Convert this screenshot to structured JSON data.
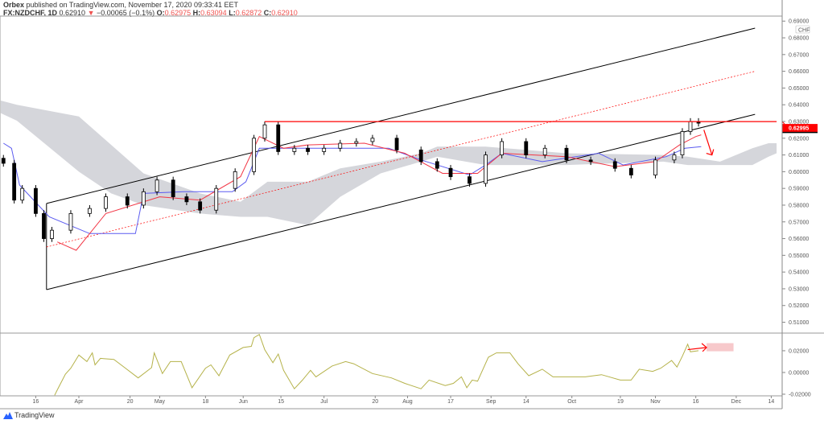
{
  "header": {
    "publisher": "Orbex",
    "published_text": "published on TradingView.com, November 17, 2020 09:33:41 EET",
    "symbol": "FX:NZDCHF, 1D",
    "last": "0.62910",
    "change": "−0.00065 (−0.1%)",
    "o_label": "O:",
    "o": "0.62975",
    "h_label": "H:",
    "h": "0.63094",
    "l_label": "L:",
    "l": "0.62872",
    "c_label": "C:",
    "c": "0.62910"
  },
  "branding": {
    "logo_text": "TradingView"
  },
  "colors": {
    "up": "#ffffff",
    "down": "#000000",
    "tenkan": "#f23645",
    "kijun": "#5b5bf0",
    "cloud": "#d5d6db",
    "oscillator": "#b5b24a",
    "drawing_red": "#ff0000",
    "channel": "#000000"
  },
  "chart_data": [
    {
      "type": "candlestick",
      "pane": "main",
      "currency_label": "CHF",
      "ylim": [
        0.504,
        0.693
      ],
      "xlim": [
        "2020-03-03",
        "2020-12-16"
      ],
      "y_ticks": [
        "0.69000",
        "0.68000",
        "0.67000",
        "0.66000",
        "0.65000",
        "0.64000",
        "0.63000",
        "0.62000",
        "0.61000",
        "0.60000",
        "0.59000",
        "0.58000",
        "0.57000",
        "0.56000",
        "0.55000",
        "0.54000",
        "0.53000",
        "0.52000",
        "0.51000"
      ],
      "price_label": "0.62995",
      "closes": [
        [
          "2020-03-04",
          0.605
        ],
        [
          "2020-03-08",
          0.583
        ],
        [
          "2020-03-11",
          0.59
        ],
        [
          "2020-03-16",
          0.575
        ],
        [
          "2020-03-19",
          0.56
        ],
        [
          "2020-03-22",
          0.565
        ],
        [
          "2020-03-29",
          0.575
        ],
        [
          "2020-04-05",
          0.578
        ],
        [
          "2020-04-11",
          0.585
        ],
        [
          "2020-04-19",
          0.58
        ],
        [
          "2020-04-25",
          0.588
        ],
        [
          "2020-04-30",
          0.595
        ],
        [
          "2020-05-06",
          0.585
        ],
        [
          "2020-05-11",
          0.582
        ],
        [
          "2020-05-16",
          0.577
        ],
        [
          "2020-05-22",
          0.59
        ],
        [
          "2020-05-29",
          0.6
        ],
        [
          "2020-06-05",
          0.62
        ],
        [
          "2020-06-09",
          0.628
        ],
        [
          "2020-06-14",
          0.612
        ],
        [
          "2020-06-20",
          0.614
        ],
        [
          "2020-06-25",
          0.612
        ],
        [
          "2020-07-01",
          0.614
        ],
        [
          "2020-07-07",
          0.617
        ],
        [
          "2020-07-13",
          0.618
        ],
        [
          "2020-07-19",
          0.62
        ],
        [
          "2020-07-28",
          0.613
        ],
        [
          "2020-08-06",
          0.606
        ],
        [
          "2020-08-12",
          0.602
        ],
        [
          "2020-08-17",
          0.597
        ],
        [
          "2020-08-24",
          0.593
        ],
        [
          "2020-08-30",
          0.61
        ],
        [
          "2020-09-05",
          0.618
        ],
        [
          "2020-09-14",
          0.61
        ],
        [
          "2020-09-21",
          0.614
        ],
        [
          "2020-09-29",
          0.607
        ],
        [
          "2020-10-08",
          0.606
        ],
        [
          "2020-10-17",
          0.602
        ],
        [
          "2020-10-23",
          0.598
        ],
        [
          "2020-11-01",
          0.607
        ],
        [
          "2020-11-08",
          0.61
        ],
        [
          "2020-11-11",
          0.624
        ],
        [
          "2020-11-14",
          0.63
        ],
        [
          "2020-11-17",
          0.629
        ]
      ],
      "tenkan": [
        [
          "2020-03-24",
          0.558
        ],
        [
          "2020-03-31",
          0.553
        ],
        [
          "2020-04-11",
          0.575
        ],
        [
          "2020-05-01",
          0.585
        ],
        [
          "2020-05-16",
          0.583
        ],
        [
          "2020-05-31",
          0.597
        ],
        [
          "2020-06-07",
          0.621
        ],
        [
          "2020-06-16",
          0.614
        ],
        [
          "2020-06-25",
          0.616
        ],
        [
          "2020-07-16",
          0.617
        ],
        [
          "2020-07-31",
          0.611
        ],
        [
          "2020-08-14",
          0.599
        ],
        [
          "2020-08-27",
          0.599
        ],
        [
          "2020-09-05",
          0.611
        ],
        [
          "2020-09-29",
          0.609
        ],
        [
          "2020-10-17",
          0.603
        ],
        [
          "2020-11-01",
          0.606
        ],
        [
          "2020-11-10",
          0.616
        ],
        [
          "2020-11-16",
          0.621
        ],
        [
          "2020-11-18",
          0.622
        ]
      ],
      "kijun": [
        [
          "2020-03-04",
          0.617
        ],
        [
          "2020-03-07",
          0.614
        ],
        [
          "2020-03-10",
          0.592
        ],
        [
          "2020-03-21",
          0.573
        ],
        [
          "2020-04-05",
          0.563
        ],
        [
          "2020-04-22",
          0.563
        ],
        [
          "2020-04-25",
          0.587
        ],
        [
          "2020-05-10",
          0.588
        ],
        [
          "2020-05-28",
          0.588
        ],
        [
          "2020-06-02",
          0.594
        ],
        [
          "2020-06-07",
          0.614
        ],
        [
          "2020-06-22",
          0.614
        ],
        [
          "2020-07-25",
          0.614
        ],
        [
          "2020-08-06",
          0.607
        ],
        [
          "2020-08-24",
          0.598
        ],
        [
          "2020-08-30",
          0.604
        ],
        [
          "2020-09-05",
          0.611
        ],
        [
          "2020-09-20",
          0.606
        ],
        [
          "2020-10-11",
          0.611
        ],
        [
          "2020-10-20",
          0.604
        ],
        [
          "2020-11-05",
          0.609
        ],
        [
          "2020-11-12",
          0.614
        ],
        [
          "2020-11-18",
          0.615
        ]
      ],
      "cloud_upper": [
        [
          "2020-03-03",
          0.6425
        ],
        [
          "2020-03-09",
          0.64
        ],
        [
          "2020-04-01",
          0.633
        ],
        [
          "2020-04-13",
          0.616
        ],
        [
          "2020-04-25",
          0.599
        ],
        [
          "2020-05-16",
          0.587
        ],
        [
          "2020-05-31",
          0.582
        ],
        [
          "2020-06-10",
          0.594
        ],
        [
          "2020-06-25",
          0.594
        ],
        [
          "2020-07-07",
          0.602
        ],
        [
          "2020-07-22",
          0.606
        ],
        [
          "2020-08-06",
          0.611
        ],
        [
          "2020-08-12",
          0.615
        ],
        [
          "2020-08-30",
          0.615
        ],
        [
          "2020-09-29",
          0.611
        ],
        [
          "2020-11-04",
          0.61
        ],
        [
          "2020-11-13",
          0.609
        ],
        [
          "2020-11-25",
          0.606
        ],
        [
          "2020-12-07",
          0.614
        ],
        [
          "2020-12-13",
          0.617
        ],
        [
          "2020-12-16",
          0.617
        ]
      ],
      "cloud_lower": [
        [
          "2020-03-03",
          0.635
        ],
        [
          "2020-03-09",
          0.6305
        ],
        [
          "2020-04-01",
          0.6
        ],
        [
          "2020-04-13",
          0.587
        ],
        [
          "2020-04-25",
          0.58
        ],
        [
          "2020-05-16",
          0.575
        ],
        [
          "2020-05-31",
          0.573
        ],
        [
          "2020-06-10",
          0.573
        ],
        [
          "2020-06-25",
          0.568
        ],
        [
          "2020-07-07",
          0.585
        ],
        [
          "2020-07-22",
          0.599
        ],
        [
          "2020-08-06",
          0.606
        ],
        [
          "2020-08-12",
          0.609
        ],
        [
          "2020-08-30",
          0.604
        ],
        [
          "2020-09-29",
          0.604
        ],
        [
          "2020-11-04",
          0.606
        ],
        [
          "2020-11-13",
          0.604
        ],
        [
          "2020-11-25",
          0.604
        ],
        [
          "2020-12-07",
          0.604
        ],
        [
          "2020-12-13",
          0.609
        ],
        [
          "2020-12-16",
          0.611
        ]
      ],
      "drawings": {
        "channel_upper": [
          [
            "2020-03-20",
            0.581
          ],
          [
            "2020-12-08",
            0.6858
          ]
        ],
        "channel_lower": [
          [
            "2020-03-20",
            0.5295
          ],
          [
            "2020-12-08",
            0.6343
          ]
        ],
        "channel_mid": [
          [
            "2020-03-20",
            0.555
          ],
          [
            "2020-12-08",
            0.66
          ]
        ],
        "channel_anchor": [
          [
            "2020-03-20",
            0.581
          ],
          [
            "2020-03-20",
            0.5295
          ]
        ],
        "resistance": [
          [
            "2020-06-09",
            0.62995
          ],
          [
            "2020-12-16",
            0.62995
          ]
        ],
        "arrow_down": [
          [
            "2020-11-19",
            0.625
          ],
          [
            "2020-11-22",
            0.61
          ]
        ]
      }
    },
    {
      "type": "line",
      "pane": "oscillator",
      "ylim": [
        -0.0215,
        0.0355
      ],
      "y_ticks": [
        "0.02000",
        "0.00000",
        "-0.02000"
      ],
      "values": [
        [
          "2020-03-23",
          -0.021
        ],
        [
          "2020-03-24",
          -0.016
        ],
        [
          "2020-03-27",
          -0.0015
        ],
        [
          "2020-03-29",
          0.004
        ],
        [
          "2020-04-01",
          0.016
        ],
        [
          "2020-04-04",
          0.01
        ],
        [
          "2020-04-06",
          0.018
        ],
        [
          "2020-04-07",
          0.007
        ],
        [
          "2020-04-09",
          0.013
        ],
        [
          "2020-04-14",
          0.012
        ],
        [
          "2020-04-18",
          0.0045
        ],
        [
          "2020-04-23",
          -0.005
        ],
        [
          "2020-04-28",
          0.0045
        ],
        [
          "2020-04-29",
          0.018
        ],
        [
          "2020-05-02",
          -0.001
        ],
        [
          "2020-05-05",
          0.01
        ],
        [
          "2020-05-09",
          0.01
        ],
        [
          "2020-05-13",
          -0.014
        ],
        [
          "2020-05-18",
          0.004
        ],
        [
          "2020-05-20",
          0.007
        ],
        [
          "2020-05-23",
          -0.003
        ],
        [
          "2020-05-27",
          0.016
        ],
        [
          "2020-06-01",
          0.023
        ],
        [
          "2020-06-04",
          0.024
        ],
        [
          "2020-06-05",
          0.032
        ],
        [
          "2020-06-07",
          0.035
        ],
        [
          "2020-06-09",
          0.021
        ],
        [
          "2020-06-12",
          0.009
        ],
        [
          "2020-06-14",
          0.017
        ],
        [
          "2020-06-16",
          0.002
        ],
        [
          "2020-06-20",
          -0.015
        ],
        [
          "2020-06-23",
          -0.007
        ],
        [
          "2020-06-26",
          0.002
        ],
        [
          "2020-06-28",
          -0.004
        ],
        [
          "2020-07-04",
          0.006
        ],
        [
          "2020-07-09",
          0.01
        ],
        [
          "2020-07-12",
          0.008
        ],
        [
          "2020-07-19",
          -0.001
        ],
        [
          "2020-07-26",
          -0.005
        ],
        [
          "2020-07-31",
          -0.01
        ],
        [
          "2020-08-06",
          -0.015
        ],
        [
          "2020-08-09",
          -0.007
        ],
        [
          "2020-08-15",
          -0.012
        ],
        [
          "2020-08-18",
          -0.01
        ],
        [
          "2020-08-21",
          -0.004
        ],
        [
          "2020-08-23",
          -0.014
        ],
        [
          "2020-08-25",
          -0.007
        ],
        [
          "2020-08-27",
          -0.008
        ],
        [
          "2020-08-31",
          0.014
        ],
        [
          "2020-09-03",
          0.018
        ],
        [
          "2020-09-08",
          0.018
        ],
        [
          "2020-09-11",
          0.008
        ],
        [
          "2020-09-15",
          -0.003
        ],
        [
          "2020-09-20",
          0.003
        ],
        [
          "2020-09-24",
          -0.004
        ],
        [
          "2020-09-30",
          -0.004
        ],
        [
          "2020-10-06",
          -0.004
        ],
        [
          "2020-10-12",
          -0.002
        ],
        [
          "2020-10-19",
          -0.007
        ],
        [
          "2020-10-23",
          -0.007
        ],
        [
          "2020-10-26",
          0.003
        ],
        [
          "2020-10-31",
          0.001
        ],
        [
          "2020-11-03",
          0.004
        ],
        [
          "2020-11-07",
          0.011
        ],
        [
          "2020-11-09",
          0.005
        ],
        [
          "2020-11-11",
          0.015
        ],
        [
          "2020-11-13",
          0.026
        ],
        [
          "2020-11-14",
          0.019
        ],
        [
          "2020-11-17",
          0.02
        ]
      ],
      "drawings": {
        "arrow_right": [
          [
            "2020-11-13",
            0.021
          ],
          [
            "2020-11-20",
            0.023
          ]
        ],
        "target_box": [
          [
            "2020-11-20",
            0.027
          ],
          [
            "2020-11-30",
            0.0195
          ]
        ]
      }
    }
  ],
  "x_ticks": [
    [
      "2020-03-16",
      "16"
    ],
    [
      "2020-04-01",
      "Apr"
    ],
    [
      "2020-04-20",
      "20"
    ],
    [
      "2020-05-01",
      "May"
    ],
    [
      "2020-05-18",
      "18"
    ],
    [
      "2020-06-01",
      "Jun"
    ],
    [
      "2020-06-15",
      "15"
    ],
    [
      "2020-07-01",
      "Jul"
    ],
    [
      "2020-07-20",
      "20"
    ],
    [
      "2020-08-01",
      "Aug"
    ],
    [
      "2020-08-17",
      "17"
    ],
    [
      "2020-09-01",
      "Sep"
    ],
    [
      "2020-09-14",
      "14"
    ],
    [
      "2020-10-01",
      "Oct"
    ],
    [
      "2020-10-19",
      "19"
    ],
    [
      "2020-11-01",
      "Nov"
    ],
    [
      "2020-11-16",
      "16"
    ],
    [
      "2020-12-01",
      "Dec"
    ],
    [
      "2020-12-14",
      "14"
    ]
  ]
}
